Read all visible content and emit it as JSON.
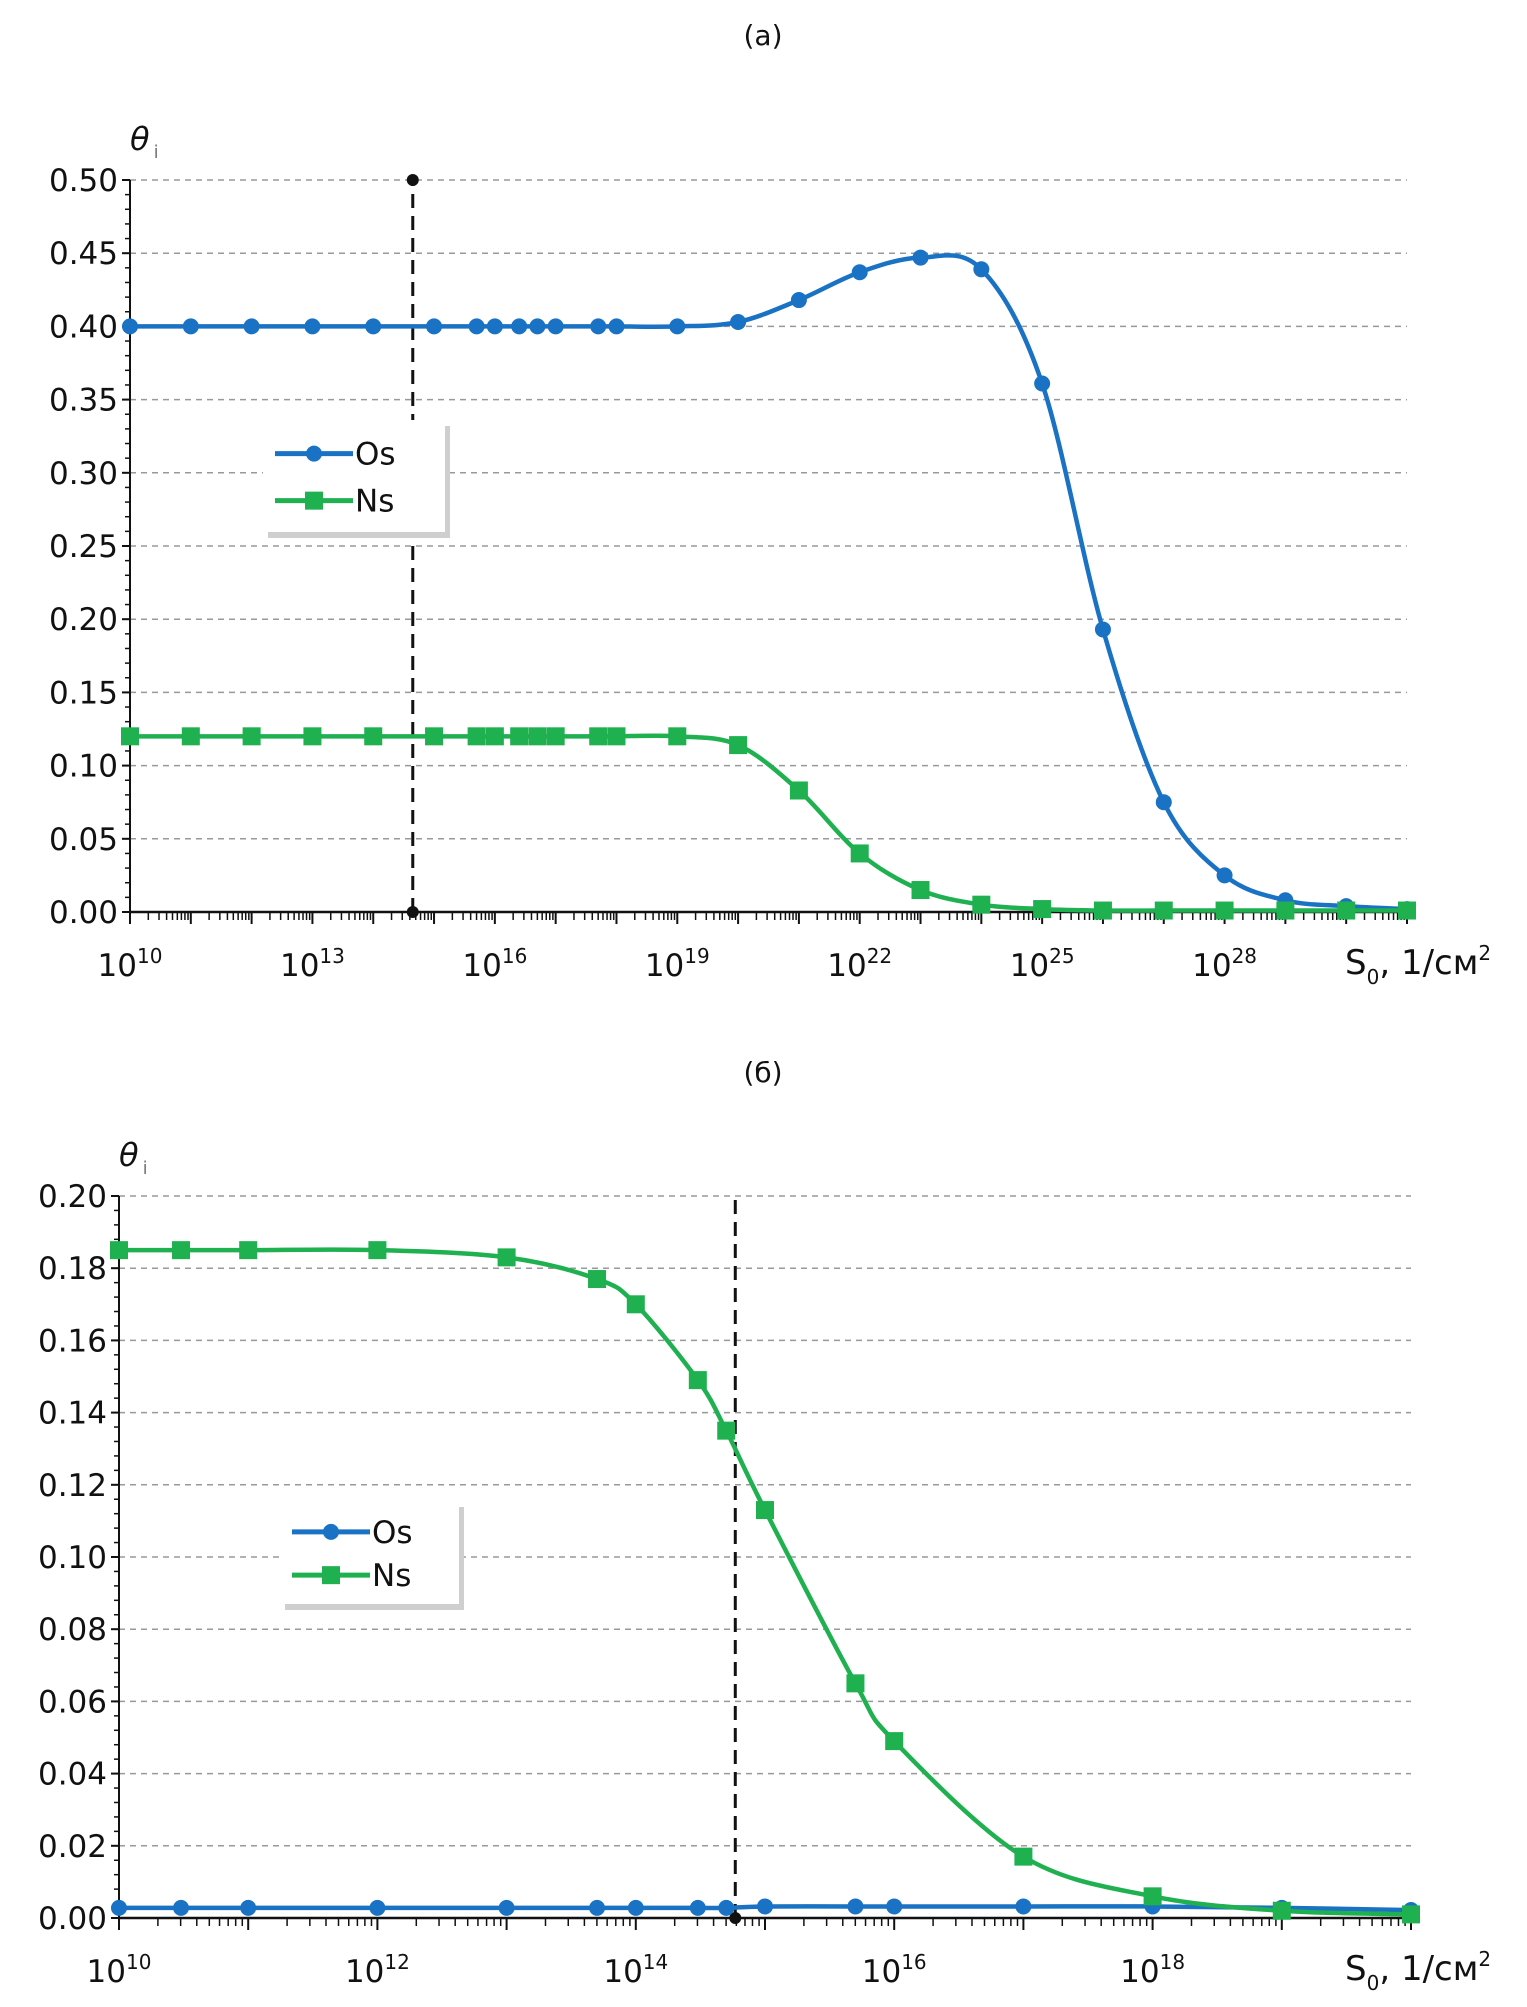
{
  "chart_data": [
    {
      "type": "line",
      "title": "(a)",
      "ylabel": "θ",
      "ylabel_sub": "i",
      "xlabel": "S",
      "xlabel_sub": "0",
      "xlabel_unit": ", 1/см",
      "xlabel_sup": "2",
      "x_scale": "log",
      "xlim_exp": [
        10,
        31
      ],
      "x_tick_exps": [
        10,
        13,
        16,
        19,
        22,
        25,
        28
      ],
      "ylim": [
        0,
        0.5
      ],
      "y_ticks": [
        "0.00",
        "0.05",
        "0.10",
        "0.15",
        "0.20",
        "0.25",
        "0.30",
        "0.35",
        "0.40",
        "0.45",
        "0.50"
      ],
      "grid": true,
      "legend_placement": "center-left",
      "vline_exp": 14.65,
      "series": [
        {
          "name": "Os",
          "color": "#1a72c4",
          "marker": "circle",
          "x_exp": [
            10,
            11,
            12,
            13,
            14,
            15,
            15.7,
            16,
            16.4,
            16.7,
            17,
            17.7,
            18,
            19,
            20,
            21,
            22,
            23,
            24,
            25,
            26,
            27,
            28,
            29,
            30,
            31
          ],
          "values": [
            0.4,
            0.4,
            0.4,
            0.4,
            0.4,
            0.4,
            0.4,
            0.4,
            0.4,
            0.4,
            0.4,
            0.4,
            0.4,
            0.4,
            0.403,
            0.418,
            0.437,
            0.447,
            0.439,
            0.361,
            0.193,
            0.075,
            0.025,
            0.008,
            0.004,
            0.002
          ]
        },
        {
          "name": "Ns",
          "color": "#1fb050",
          "marker": "square",
          "x_exp": [
            10,
            11,
            12,
            13,
            14,
            15,
            15.7,
            16,
            16.4,
            16.7,
            17,
            17.7,
            18,
            19,
            20,
            21,
            22,
            23,
            24,
            25,
            26,
            27,
            28,
            29,
            30,
            31
          ],
          "values": [
            0.12,
            0.12,
            0.12,
            0.12,
            0.12,
            0.12,
            0.12,
            0.12,
            0.12,
            0.12,
            0.12,
            0.12,
            0.12,
            0.12,
            0.114,
            0.083,
            0.04,
            0.015,
            0.005,
            0.002,
            0.001,
            0.001,
            0.001,
            0.001,
            0.001,
            0.001
          ]
        }
      ]
    },
    {
      "type": "line",
      "title": "(б)",
      "ylabel": "θ",
      "ylabel_sub": "i",
      "xlabel": "S",
      "xlabel_sub": "0",
      "xlabel_unit": ", 1/см",
      "xlabel_sup": "2",
      "x_scale": "log",
      "xlim_exp": [
        10,
        20
      ],
      "x_tick_exps": [
        10,
        12,
        14,
        16,
        18
      ],
      "ylim": [
        0,
        0.2
      ],
      "y_ticks": [
        "0.00",
        "0.02",
        "0.04",
        "0.06",
        "0.08",
        "0.10",
        "0.12",
        "0.14",
        "0.16",
        "0.18",
        "0.20"
      ],
      "grid": true,
      "legend_placement": "center-left",
      "vline_exp": 14.77,
      "series": [
        {
          "name": "Os",
          "color": "#1a72c4",
          "marker": "circle",
          "x_exp": [
            10,
            10.48,
            11,
            12,
            13,
            13.7,
            14,
            14.48,
            14.7,
            15,
            15.7,
            16,
            17,
            18,
            19,
            20
          ],
          "values": [
            0.0028,
            0.0028,
            0.0028,
            0.0028,
            0.0028,
            0.0028,
            0.0028,
            0.0028,
            0.0028,
            0.0032,
            0.0032,
            0.0032,
            0.0032,
            0.0032,
            0.0028,
            0.0022
          ]
        },
        {
          "name": "Ns",
          "color": "#1fb050",
          "marker": "square",
          "x_exp": [
            10,
            10.48,
            11,
            12,
            13,
            13.7,
            14,
            14.48,
            14.7,
            15,
            15.7,
            16,
            17,
            18,
            19,
            20
          ],
          "values": [
            0.185,
            0.185,
            0.185,
            0.185,
            0.183,
            0.177,
            0.17,
            0.149,
            0.135,
            0.113,
            0.065,
            0.049,
            0.017,
            0.006,
            0.002,
            0.001
          ]
        }
      ]
    }
  ]
}
